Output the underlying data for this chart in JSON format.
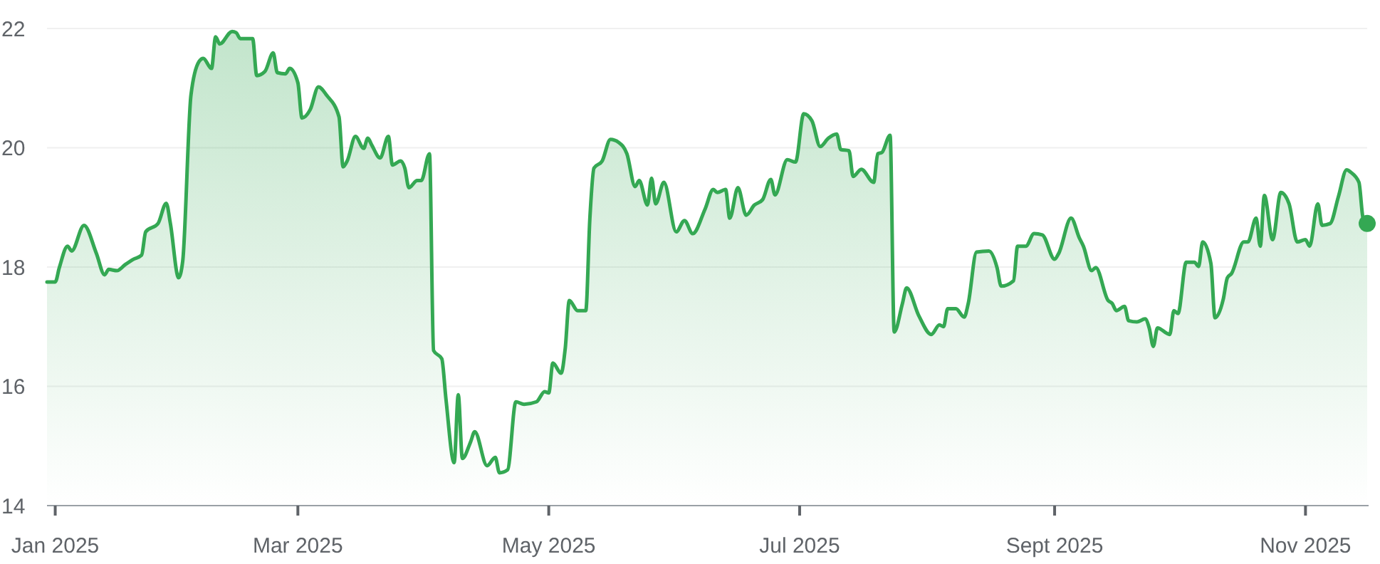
{
  "chart_data": {
    "type": "area",
    "x": [
      "2024-12-30",
      "2025-01-01",
      "2025-01-02",
      "2025-01-04",
      "2025-01-05",
      "2025-01-08",
      "2025-01-11",
      "2025-01-13",
      "2025-01-14",
      "2025-01-16",
      "2025-01-18",
      "2025-01-20",
      "2025-01-22",
      "2025-01-23",
      "2025-01-26",
      "2025-01-28",
      "2025-01-29",
      "2025-01-31",
      "2025-02-01",
      "2025-02-03",
      "2025-02-05",
      "2025-02-06",
      "2025-02-08",
      "2025-02-09",
      "2025-02-10",
      "2025-02-13",
      "2025-02-14",
      "2025-02-15",
      "2025-02-18",
      "2025-02-19",
      "2025-02-21",
      "2025-02-23",
      "2025-02-24",
      "2025-02-26",
      "2025-02-27",
      "2025-03-01",
      "2025-03-02",
      "2025-03-04",
      "2025-03-06",
      "2025-03-08",
      "2025-03-11",
      "2025-03-12",
      "2025-03-13",
      "2025-03-15",
      "2025-03-17",
      "2025-03-18",
      "2025-03-19",
      "2025-03-21",
      "2025-03-23",
      "2025-03-24",
      "2025-03-26",
      "2025-03-27",
      "2025-03-28",
      "2025-03-30",
      "2025-03-31",
      "2025-04-02",
      "2025-04-03",
      "2025-04-05",
      "2025-04-06",
      "2025-04-08",
      "2025-04-09",
      "2025-04-10",
      "2025-04-12",
      "2025-04-13",
      "2025-04-16",
      "2025-04-18",
      "2025-04-19",
      "2025-04-21",
      "2025-04-23",
      "2025-04-25",
      "2025-04-28",
      "2025-04-30",
      "2025-05-01",
      "2025-05-02",
      "2025-05-04",
      "2025-05-05",
      "2025-05-06",
      "2025-05-08",
      "2025-05-10",
      "2025-05-11",
      "2025-05-12",
      "2025-05-14",
      "2025-05-16",
      "2025-05-18",
      "2025-05-20",
      "2025-05-22",
      "2025-05-23",
      "2025-05-25",
      "2025-05-26",
      "2025-05-27",
      "2025-05-29",
      "2025-06-01",
      "2025-06-03",
      "2025-06-05",
      "2025-06-08",
      "2025-06-10",
      "2025-06-11",
      "2025-06-13",
      "2025-06-14",
      "2025-06-16",
      "2025-06-18",
      "2025-06-20",
      "2025-06-22",
      "2025-06-24",
      "2025-06-25",
      "2025-06-28",
      "2025-06-30",
      "2025-07-02",
      "2025-07-04",
      "2025-07-06",
      "2025-07-08",
      "2025-07-10",
      "2025-07-11",
      "2025-07-13",
      "2025-07-14",
      "2025-07-16",
      "2025-07-19",
      "2025-07-20",
      "2025-07-21",
      "2025-07-23",
      "2025-07-24",
      "2025-07-26",
      "2025-07-27",
      "2025-07-30",
      "2025-08-02",
      "2025-08-04",
      "2025-08-05",
      "2025-08-06",
      "2025-08-08",
      "2025-08-10",
      "2025-08-11",
      "2025-08-13",
      "2025-08-16",
      "2025-08-18",
      "2025-08-19",
      "2025-08-22",
      "2025-08-23",
      "2025-08-25",
      "2025-08-27",
      "2025-08-29",
      "2025-09-01",
      "2025-09-02",
      "2025-09-05",
      "2025-09-07",
      "2025-09-08",
      "2025-09-10",
      "2025-09-11",
      "2025-09-14",
      "2025-09-15",
      "2025-09-16",
      "2025-09-18",
      "2025-09-19",
      "2025-09-21",
      "2025-09-23",
      "2025-09-24",
      "2025-09-25",
      "2025-09-26",
      "2025-09-29",
      "2025-09-30",
      "2025-10-01",
      "2025-10-03",
      "2025-10-05",
      "2025-10-06",
      "2025-10-07",
      "2025-10-09",
      "2025-10-10",
      "2025-10-12",
      "2025-10-13",
      "2025-10-14",
      "2025-10-17",
      "2025-10-18",
      "2025-10-20",
      "2025-10-21",
      "2025-10-22",
      "2025-10-24",
      "2025-10-26",
      "2025-10-28",
      "2025-10-30",
      "2025-11-01",
      "2025-11-02",
      "2025-11-04",
      "2025-11-05",
      "2025-11-07",
      "2025-11-09",
      "2025-11-11",
      "2025-11-12",
      "2025-11-14",
      "2025-11-15",
      "2025-11-16"
    ],
    "series": [
      {
        "color": "#34a853",
        "values": [
          17.75,
          17.75,
          17.99,
          18.35,
          18.27,
          18.7,
          18.23,
          17.87,
          17.96,
          17.94,
          18.04,
          18.13,
          18.2,
          18.59,
          18.73,
          19.07,
          18.73,
          17.82,
          18.1,
          20.88,
          21.45,
          21.5,
          21.33,
          21.86,
          21.74,
          21.95,
          21.93,
          21.83,
          21.83,
          21.21,
          21.28,
          21.59,
          21.26,
          21.24,
          21.33,
          21.09,
          20.5,
          20.64,
          21.02,
          20.88,
          20.52,
          19.68,
          19.78,
          20.19,
          19.99,
          20.16,
          20.04,
          19.83,
          20.19,
          19.71,
          19.78,
          19.66,
          19.33,
          19.45,
          19.45,
          19.9,
          16.6,
          16.46,
          15.79,
          14.72,
          15.86,
          14.79,
          15.07,
          15.24,
          14.67,
          14.81,
          14.55,
          14.6,
          15.74,
          15.7,
          15.74,
          15.91,
          15.89,
          16.39,
          16.22,
          16.63,
          17.44,
          17.27,
          17.27,
          18.82,
          19.66,
          19.78,
          20.14,
          20.09,
          19.9,
          19.35,
          19.45,
          19.04,
          19.49,
          19.06,
          19.42,
          18.59,
          18.78,
          18.56,
          18.97,
          19.3,
          19.25,
          19.3,
          18.82,
          19.33,
          18.87,
          19.04,
          19.13,
          19.47,
          19.21,
          19.8,
          19.76,
          20.57,
          20.45,
          20.02,
          20.16,
          20.23,
          19.97,
          19.95,
          19.52,
          19.64,
          19.42,
          19.9,
          19.92,
          20.21,
          16.91,
          17.39,
          17.65,
          17.18,
          16.87,
          17.03,
          17.0,
          17.3,
          17.3,
          17.16,
          17.39,
          18.25,
          18.27,
          17.99,
          17.68,
          17.77,
          18.35,
          18.35,
          18.56,
          18.54,
          18.13,
          18.23,
          18.82,
          18.49,
          18.35,
          17.94,
          17.99,
          17.44,
          17.39,
          17.27,
          17.34,
          17.1,
          17.08,
          17.13,
          16.98,
          16.67,
          16.98,
          16.87,
          17.27,
          17.22,
          18.08,
          18.08,
          18.01,
          18.42,
          18.06,
          17.15,
          17.46,
          17.82,
          17.89,
          18.42,
          18.42,
          18.82,
          18.35,
          19.2,
          18.46,
          19.25,
          19.06,
          18.42,
          18.46,
          18.35,
          19.06,
          18.7,
          18.73,
          19.18,
          19.63,
          19.59,
          19.42,
          18.82,
          18.73
        ]
      },
      {
        "type": "scatter",
        "color": "#34a853",
        "x": [
          "2025-11-16"
        ],
        "values": [
          18.73
        ]
      }
    ],
    "xlim": [
      "2024-12-30",
      "2025-11-16"
    ],
    "xticks": [
      {
        "value": "2025-01-01",
        "label": "Jan 2025"
      },
      {
        "value": "2025-03-01",
        "label": "Mar 2025"
      },
      {
        "value": "2025-05-01",
        "label": "May 2025"
      },
      {
        "value": "2025-07-01",
        "label": "Jul 2025"
      },
      {
        "value": "2025-09-01",
        "label": "Sept 2025"
      },
      {
        "value": "2025-11-01",
        "label": "Nov 2025"
      }
    ],
    "ylim": [
      14,
      22
    ],
    "yticks": [
      14,
      16,
      18,
      20,
      22
    ],
    "grid": "y"
  }
}
